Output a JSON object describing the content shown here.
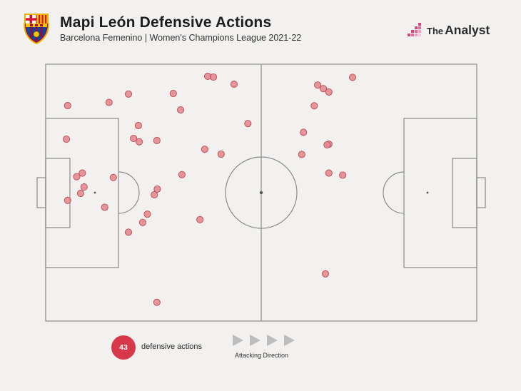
{
  "header": {
    "title": "Mapi León Defensive Actions",
    "subtitle": "Barcelona Femenino | Women's Champions League 2021-22",
    "club_crest_icon": "fc-barcelona-crest-icon",
    "brand": {
      "prefix": "The",
      "name": "Analyst",
      "icon": "the-analyst-logo-icon"
    }
  },
  "legend": {
    "count": "43",
    "count_label": "defensive actions",
    "direction_label": "Attacking Direction",
    "badge_color": "#d8394a"
  },
  "colors": {
    "background": "#f2f1ef",
    "pitch_lines": "#8a8a8a",
    "marker_fill": "#e68a8f",
    "marker_stroke": "#b84c57"
  },
  "chart_data": {
    "type": "scatter",
    "title": "Mapi León Defensive Actions",
    "xlabel": "",
    "ylabel": "",
    "xlim": [
      0,
      100
    ],
    "ylim": [
      0,
      100
    ],
    "grid": false,
    "axis_note": "Opta pitch coordinates; x = 0 own goal line to 100 opponent goal line (attacking left to right), y = 0 bottom touchline to 100 top touchline",
    "series": [
      {
        "marker": "circle",
        "color": "#e68a8f",
        "points": [
          {
            "x": 37.6,
            "y": 95.3
          },
          {
            "x": 38.9,
            "y": 95.0
          },
          {
            "x": 43.7,
            "y": 92.2
          },
          {
            "x": 19.2,
            "y": 88.4
          },
          {
            "x": 29.6,
            "y": 88.6
          },
          {
            "x": 14.7,
            "y": 85.1
          },
          {
            "x": 5.1,
            "y": 83.9
          },
          {
            "x": 31.3,
            "y": 82.2
          },
          {
            "x": 21.5,
            "y": 76.1
          },
          {
            "x": 46.9,
            "y": 76.9
          },
          {
            "x": 4.8,
            "y": 70.8
          },
          {
            "x": 20.4,
            "y": 71.1
          },
          {
            "x": 25.8,
            "y": 70.3
          },
          {
            "x": 21.7,
            "y": 69.8
          },
          {
            "x": 36.9,
            "y": 66.9
          },
          {
            "x": 40.7,
            "y": 65.0
          },
          {
            "x": 8.5,
            "y": 57.6
          },
          {
            "x": 7.2,
            "y": 56.2
          },
          {
            "x": 15.7,
            "y": 55.9
          },
          {
            "x": 31.6,
            "y": 57.0
          },
          {
            "x": 8.9,
            "y": 52.2
          },
          {
            "x": 25.9,
            "y": 51.4
          },
          {
            "x": 8.1,
            "y": 49.7
          },
          {
            "x": 25.2,
            "y": 49.2
          },
          {
            "x": 5.1,
            "y": 47.0
          },
          {
            "x": 13.7,
            "y": 44.3
          },
          {
            "x": 23.6,
            "y": 41.6
          },
          {
            "x": 35.8,
            "y": 39.5
          },
          {
            "x": 22.5,
            "y": 38.4
          },
          {
            "x": 19.2,
            "y": 34.6
          },
          {
            "x": 25.8,
            "y": 7.3
          },
          {
            "x": 71.2,
            "y": 94.9
          },
          {
            "x": 63.1,
            "y": 91.9
          },
          {
            "x": 64.4,
            "y": 90.5
          },
          {
            "x": 65.7,
            "y": 89.2
          },
          {
            "x": 62.3,
            "y": 83.8
          },
          {
            "x": 59.8,
            "y": 73.5
          },
          {
            "x": 65.7,
            "y": 68.9
          },
          {
            "x": 65.3,
            "y": 68.6
          },
          {
            "x": 59.4,
            "y": 64.9
          },
          {
            "x": 65.7,
            "y": 57.6
          },
          {
            "x": 68.9,
            "y": 56.8
          },
          {
            "x": 64.9,
            "y": 18.4
          }
        ]
      }
    ]
  }
}
